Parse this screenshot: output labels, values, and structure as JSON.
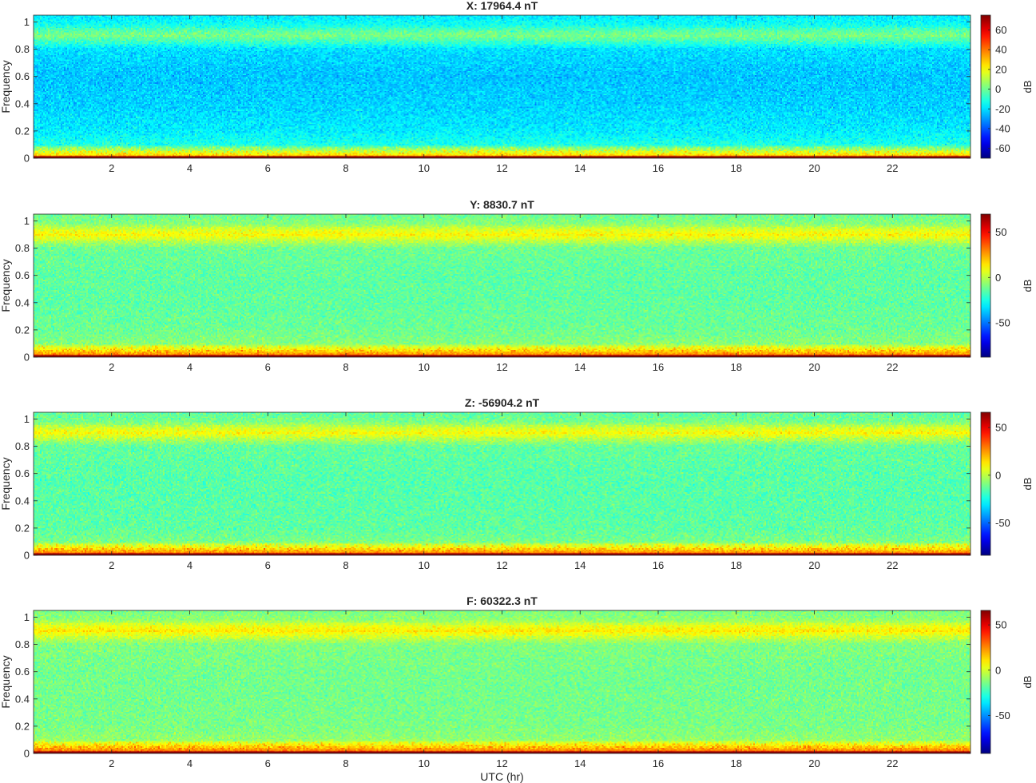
{
  "chart_data": [
    {
      "type": "heatmap",
      "title": "X: 17964.4 nT",
      "xlabel": "",
      "ylabel": "Frequency",
      "xlim": [
        0,
        24
      ],
      "ylim": [
        0,
        1.05
      ],
      "xticks": [
        "2",
        "4",
        "6",
        "8",
        "10",
        "12",
        "14",
        "16",
        "18",
        "20",
        "22"
      ],
      "yticks": [
        "0",
        "0.2",
        "0.4",
        "0.6",
        "0.8",
        "1"
      ],
      "colorbar": {
        "label": "dB",
        "range": [
          -70,
          75
        ],
        "ticks": [
          "60",
          "40",
          "20",
          "0",
          "-20",
          "-40",
          "-60"
        ]
      },
      "colormap": "jet",
      "profile": {
        "freq": [
          0,
          0.01,
          0.03,
          0.06,
          0.1,
          0.2,
          0.4,
          0.6,
          0.8,
          0.86,
          0.9,
          0.94,
          0.98,
          1.05
        ],
        "db": [
          70,
          42,
          20,
          8,
          -12,
          -18,
          -22,
          -24,
          -20,
          -6,
          2,
          -4,
          -14,
          -18
        ]
      },
      "noise_db": 12
    },
    {
      "type": "heatmap",
      "title": "Y: 8830.7 nT",
      "xlabel": "",
      "ylabel": "Frequency",
      "xlim": [
        0,
        24
      ],
      "ylim": [
        0,
        1.05
      ],
      "xticks": [
        "2",
        "4",
        "6",
        "8",
        "10",
        "12",
        "14",
        "16",
        "18",
        "20",
        "22"
      ],
      "yticks": [
        "0",
        "0.2",
        "0.4",
        "0.6",
        "0.8",
        "1"
      ],
      "colorbar": {
        "label": "dB",
        "range": [
          -88,
          70
        ],
        "ticks": [
          "50",
          "0",
          "-50"
        ]
      },
      "colormap": "jet",
      "profile": {
        "freq": [
          0,
          0.01,
          0.03,
          0.06,
          0.1,
          0.2,
          0.4,
          0.6,
          0.8,
          0.86,
          0.9,
          0.94,
          0.98,
          1.05
        ],
        "db": [
          65,
          40,
          22,
          10,
          -8,
          -12,
          -14,
          -14,
          -12,
          2,
          12,
          4,
          -8,
          -12
        ]
      },
      "noise_db": 12
    },
    {
      "type": "heatmap",
      "title": "Z: -56904.2 nT",
      "xlabel": "",
      "ylabel": "Frequency",
      "xlim": [
        0,
        24
      ],
      "ylim": [
        0,
        1.05
      ],
      "xticks": [
        "2",
        "4",
        "6",
        "8",
        "10",
        "12",
        "14",
        "16",
        "18",
        "20",
        "22"
      ],
      "yticks": [
        "0",
        "0.2",
        "0.4",
        "0.6",
        "0.8",
        "1"
      ],
      "colorbar": {
        "label": "dB",
        "range": [
          -84,
          66
        ],
        "ticks": [
          "50",
          "0",
          "-50"
        ]
      },
      "colormap": "jet",
      "profile": {
        "freq": [
          0,
          0.01,
          0.03,
          0.06,
          0.1,
          0.2,
          0.4,
          0.6,
          0.8,
          0.86,
          0.9,
          0.94,
          0.98,
          1.05
        ],
        "db": [
          62,
          38,
          20,
          8,
          -10,
          -14,
          -15,
          -15,
          -13,
          0,
          10,
          2,
          -10,
          -14
        ]
      },
      "noise_db": 12
    },
    {
      "type": "heatmap",
      "title": "F: 60322.3 nT",
      "xlabel": "UTC (hr)",
      "ylabel": "Frequency",
      "xlim": [
        0,
        24
      ],
      "ylim": [
        0,
        1.05
      ],
      "xticks": [
        "2",
        "4",
        "6",
        "8",
        "10",
        "12",
        "14",
        "16",
        "18",
        "20",
        "22"
      ],
      "yticks": [
        "0",
        "0.2",
        "0.4",
        "0.6",
        "0.8",
        "1"
      ],
      "colorbar": {
        "label": "dB",
        "range": [
          -92,
          66
        ],
        "ticks": [
          "50",
          "0",
          "-50"
        ]
      },
      "colormap": "jet",
      "profile": {
        "freq": [
          0,
          0.01,
          0.03,
          0.06,
          0.1,
          0.2,
          0.4,
          0.6,
          0.8,
          0.86,
          0.9,
          0.94,
          0.98,
          1.05
        ],
        "db": [
          62,
          38,
          20,
          8,
          -10,
          -14,
          -15,
          -15,
          -13,
          0,
          10,
          2,
          -10,
          -14
        ]
      },
      "noise_db": 12
    }
  ]
}
